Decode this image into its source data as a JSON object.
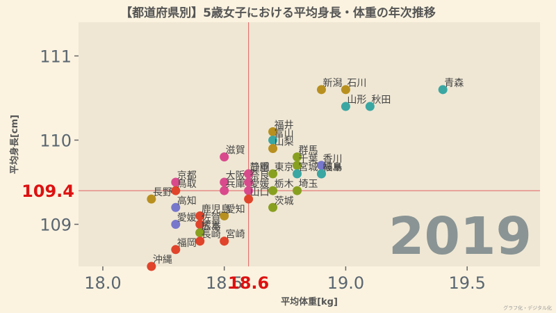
{
  "chart_data": {
    "type": "scatter",
    "title": "【都道府県別】5歳女子における平均身長・体重の年次推移",
    "xlabel": "平均体重[kg]",
    "ylabel": "平均身長[cm]",
    "xlim": [
      17.9,
      19.8
    ],
    "ylim": [
      108.5,
      111.4
    ],
    "x_ticks": [
      18.0,
      18.5,
      19.0,
      19.5
    ],
    "y_ticks": [
      109,
      110,
      111
    ],
    "x_tick_labels": [
      "18.0",
      "18.5",
      "19.0",
      "19.5"
    ],
    "y_tick_labels": [
      "109",
      "110",
      "111"
    ],
    "grid": false,
    "year": "2019",
    "mean_x": 18.6,
    "mean_y": 109.4,
    "mean_x_label": "18.6",
    "mean_y_label": "109.4",
    "colors": {
      "background": "#fbf3e0",
      "panel": "#efe7d4",
      "reference_line": "#e06060",
      "reference_label": "#dd1111",
      "year": "#8a9494"
    },
    "points": [
      {
        "label": "青森",
        "x": 19.4,
        "y": 110.6,
        "color": "#3aa7a3"
      },
      {
        "label": "新潟",
        "x": 18.9,
        "y": 110.6,
        "color": "#b8901f"
      },
      {
        "label": "石川",
        "x": 19.0,
        "y": 110.6,
        "color": "#b8901f"
      },
      {
        "label": "山形",
        "x": 19.0,
        "y": 110.4,
        "color": "#3aa7a3"
      },
      {
        "label": "秋田",
        "x": 19.1,
        "y": 110.4,
        "color": "#3aa7a3"
      },
      {
        "label": "福井",
        "x": 18.7,
        "y": 110.1,
        "color": "#b8901f"
      },
      {
        "label": "富山",
        "x": 18.7,
        "y": 110.0,
        "color": "#3aa7a3"
      },
      {
        "label": "山梨",
        "x": 18.7,
        "y": 109.9,
        "color": "#b8901f"
      },
      {
        "label": "滋賀",
        "x": 18.5,
        "y": 109.8,
        "color": "#d94a8c"
      },
      {
        "label": "群馬",
        "x": 18.8,
        "y": 109.8,
        "color": "#88a020"
      },
      {
        "label": "千葉",
        "x": 18.8,
        "y": 109.7,
        "color": "#88a020"
      },
      {
        "label": "香川",
        "x": 18.9,
        "y": 109.7,
        "color": "#7777cc"
      },
      {
        "label": "岐阜",
        "x": 18.9,
        "y": 109.6,
        "color": "#7777cc"
      },
      {
        "label": "福島",
        "x": 18.9,
        "y": 109.6,
        "color": "#3aa7a3"
      },
      {
        "label": "静岡",
        "x": 18.6,
        "y": 109.6,
        "color": "#d94a8c"
      },
      {
        "label": "三重",
        "x": 18.6,
        "y": 109.6,
        "color": "#d94a8c"
      },
      {
        "label": "東京",
        "x": 18.7,
        "y": 109.6,
        "color": "#88a020"
      },
      {
        "label": "宮城",
        "x": 18.8,
        "y": 109.6,
        "color": "#3aa7a3"
      },
      {
        "label": "大阪",
        "x": 18.5,
        "y": 109.5,
        "color": "#d94a8c"
      },
      {
        "label": "奈良",
        "x": 18.6,
        "y": 109.5,
        "color": "#d94a8c"
      },
      {
        "label": "京都",
        "x": 18.3,
        "y": 109.5,
        "color": "#d94a8c"
      },
      {
        "label": "鳥取",
        "x": 18.3,
        "y": 109.4,
        "color": "#e0442b"
      },
      {
        "label": "兵庫",
        "x": 18.5,
        "y": 109.4,
        "color": "#d94a8c"
      },
      {
        "label": "愛媛",
        "x": 18.6,
        "y": 109.4,
        "color": "#d94a8c"
      },
      {
        "label": "栃木",
        "x": 18.7,
        "y": 109.4,
        "color": "#88a020"
      },
      {
        "label": "長野",
        "x": 18.2,
        "y": 109.3,
        "color": "#b8901f"
      },
      {
        "label": "埼玉",
        "x": 18.8,
        "y": 109.4,
        "color": "#88a020"
      },
      {
        "label": "山口",
        "x": 18.6,
        "y": 109.3,
        "color": "#e0442b"
      },
      {
        "label": "高知",
        "x": 18.3,
        "y": 109.2,
        "color": "#7777cc"
      },
      {
        "label": "茨城",
        "x": 18.7,
        "y": 109.2,
        "color": "#88a020"
      },
      {
        "label": "鹿児島",
        "x": 18.4,
        "y": 109.1,
        "color": "#e0442b"
      },
      {
        "label": "愛知",
        "x": 18.5,
        "y": 109.1,
        "color": "#b8901f"
      },
      {
        "label": "愛媛",
        "x": 18.3,
        "y": 109.0,
        "color": "#7777cc"
      },
      {
        "label": "佐賀",
        "x": 18.4,
        "y": 109.0,
        "color": "#e0442b"
      },
      {
        "label": "広島",
        "x": 18.4,
        "y": 108.9,
        "color": "#e0442b"
      },
      {
        "label": "熊本",
        "x": 18.4,
        "y": 108.9,
        "color": "#88a020"
      },
      {
        "label": "長崎",
        "x": 18.4,
        "y": 108.8,
        "color": "#e0442b"
      },
      {
        "label": "宮崎",
        "x": 18.5,
        "y": 108.8,
        "color": "#e0442b"
      },
      {
        "label": "福岡",
        "x": 18.3,
        "y": 108.7,
        "color": "#e0442b"
      },
      {
        "label": "沖縄",
        "x": 18.2,
        "y": 108.5,
        "color": "#e0442b"
      }
    ]
  },
  "footer": {
    "credit": "グラフ化・デジタル化"
  }
}
